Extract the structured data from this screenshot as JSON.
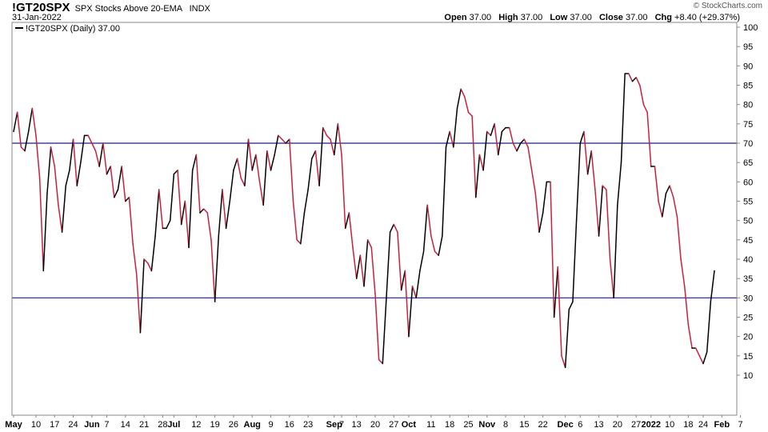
{
  "header": {
    "symbol": "!GT20SPX",
    "description": "SPX Stocks Above 20-EMA",
    "exchange": "INDX",
    "date": "31-Jan-2022",
    "brand": "© StockCharts.com"
  },
  "ohlc": {
    "open_label": "Open",
    "open": "37.00",
    "high_label": "High",
    "high": "37.00",
    "low_label": "Low",
    "low": "37.00",
    "close_label": "Close",
    "close": "37.00",
    "chg_label": "Chg",
    "chg": "+8.40 (+29.37%)"
  },
  "chart_data": {
    "type": "line",
    "legend": "!GT20SPX (Daily) 37.00",
    "legend_placement": "top-left",
    "ylim": [
      0,
      100
    ],
    "yticks": [
      10,
      15,
      20,
      25,
      30,
      35,
      40,
      45,
      50,
      55,
      60,
      65,
      70,
      75,
      80,
      85,
      90,
      95,
      100
    ],
    "xlim": [
      0,
      197
    ],
    "xticks": [
      {
        "label": "May",
        "x": 0,
        "bold": true
      },
      {
        "label": "10",
        "x": 6
      },
      {
        "label": "17",
        "x": 11
      },
      {
        "label": "24",
        "x": 16
      },
      {
        "label": "Jun",
        "x": 21,
        "bold": true
      },
      {
        "label": "7",
        "x": 25
      },
      {
        "label": "14",
        "x": 30
      },
      {
        "label": "21",
        "x": 35
      },
      {
        "label": "28",
        "x": 40
      },
      {
        "label": "Jul",
        "x": 43,
        "bold": true
      },
      {
        "label": "12",
        "x": 49
      },
      {
        "label": "19",
        "x": 54
      },
      {
        "label": "26",
        "x": 59
      },
      {
        "label": "Aug",
        "x": 64,
        "bold": true
      },
      {
        "label": "9",
        "x": 69
      },
      {
        "label": "16",
        "x": 74
      },
      {
        "label": "23",
        "x": 79
      },
      {
        "label": "Sep",
        "x": 86,
        "bold": true
      },
      {
        "label": "7",
        "x": 88
      },
      {
        "label": "13",
        "x": 92
      },
      {
        "label": "20",
        "x": 97
      },
      {
        "label": "27",
        "x": 102
      },
      {
        "label": "Oct",
        "x": 106,
        "bold": true
      },
      {
        "label": "11",
        "x": 112
      },
      {
        "label": "18",
        "x": 117
      },
      {
        "label": "25",
        "x": 122
      },
      {
        "label": "Nov",
        "x": 127,
        "bold": true
      },
      {
        "label": "8",
        "x": 132
      },
      {
        "label": "15",
        "x": 137
      },
      {
        "label": "22",
        "x": 142
      },
      {
        "label": "Dec",
        "x": 148,
        "bold": true
      },
      {
        "label": "6",
        "x": 152
      },
      {
        "label": "13",
        "x": 157
      },
      {
        "label": "20",
        "x": 162
      },
      {
        "label": "27",
        "x": 167
      },
      {
        "label": "2022",
        "x": 171,
        "bold": true
      },
      {
        "label": "10",
        "x": 176
      },
      {
        "label": "18",
        "x": 181
      },
      {
        "label": "24",
        "x": 185
      },
      {
        "label": "Feb",
        "x": 190,
        "bold": true
      },
      {
        "label": "7",
        "x": 195
      }
    ],
    "reference_lines": [
      70,
      30
    ],
    "colors": {
      "up": "#000000",
      "down": "#cc1f3c",
      "reference": "#1f1f7a",
      "grid": "#d0d0d0"
    },
    "values": [
      73,
      78,
      69,
      68,
      73,
      79,
      72,
      61,
      37,
      57,
      69,
      64,
      54,
      47,
      59,
      63,
      71,
      59,
      65,
      72,
      72,
      70,
      68,
      64,
      70,
      62,
      64,
      56,
      58,
      64,
      55,
      56,
      44,
      36,
      21,
      40,
      39,
      37,
      46,
      58,
      48,
      48,
      50,
      62,
      63,
      49,
      55,
      43,
      63,
      67,
      52,
      53,
      52,
      45,
      29,
      46,
      58,
      48,
      55,
      63,
      66,
      61,
      59,
      71,
      63,
      67,
      60,
      54,
      68,
      63,
      67,
      72,
      71,
      70,
      71,
      55,
      45,
      44,
      52,
      58,
      66,
      68,
      59,
      74,
      72,
      71,
      67,
      75,
      67,
      48,
      52,
      43,
      35,
      41,
      33,
      45,
      43,
      31,
      14,
      13,
      30,
      47,
      49,
      47,
      32,
      37,
      20,
      33,
      30,
      37,
      42,
      54,
      46,
      42,
      41,
      46,
      69,
      73,
      69,
      79,
      84,
      82,
      78,
      77,
      56,
      67,
      63,
      73,
      72,
      75,
      67,
      73,
      74,
      74,
      70,
      68,
      70,
      71,
      69,
      63,
      57,
      47,
      52,
      60,
      60,
      25,
      38,
      15,
      12,
      27,
      29,
      50,
      70,
      73,
      62,
      68,
      58,
      46,
      59,
      58,
      40,
      30,
      54,
      65,
      88,
      88,
      86,
      87,
      85,
      80,
      78,
      64,
      64,
      55,
      51,
      57,
      59,
      56,
      51,
      40,
      33,
      23,
      17,
      17,
      15,
      13,
      16,
      29,
      37
    ]
  }
}
